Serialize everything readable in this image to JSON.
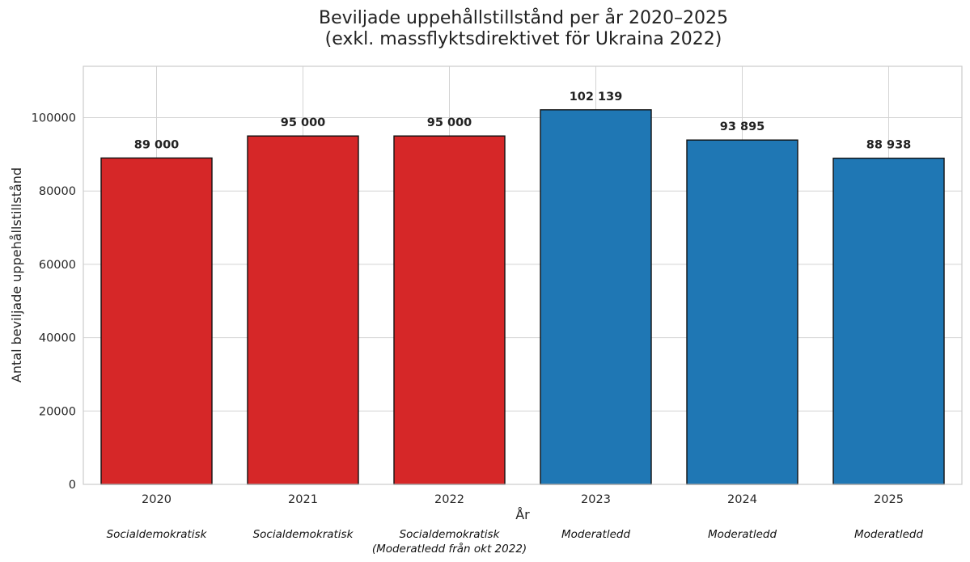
{
  "chart_data": {
    "type": "bar",
    "title_line1": "Beviljade uppehållstillstånd per år 2020–2025",
    "title_line2": "(exkl. massflyktsdirektivet för Ukraina 2022)",
    "xlabel": "År",
    "ylabel": "Antal beviljade uppehållstillstånd",
    "categories": [
      "2020",
      "2021",
      "2022",
      "2023",
      "2024",
      "2025"
    ],
    "values": [
      89000,
      95000,
      95000,
      102139,
      93895,
      88938
    ],
    "value_labels": [
      "89 000",
      "95 000",
      "95 000",
      "102 139",
      "93 895",
      "88 938"
    ],
    "colors": [
      "#d62728",
      "#d62728",
      "#d62728",
      "#1f77b4",
      "#1f77b4",
      "#1f77b4"
    ],
    "government_labels": [
      [
        "Socialdemokratisk"
      ],
      [
        "Socialdemokratisk"
      ],
      [
        "Socialdemokratisk",
        "(Moderatledd från okt 2022)"
      ],
      [
        "Moderatledd"
      ],
      [
        "Moderatledd"
      ],
      [
        "Moderatledd"
      ]
    ],
    "yticks": [
      0,
      20000,
      40000,
      60000,
      80000,
      100000
    ],
    "ylim": [
      0,
      114000
    ],
    "grid": true,
    "bar_edge_color": "#111111"
  }
}
